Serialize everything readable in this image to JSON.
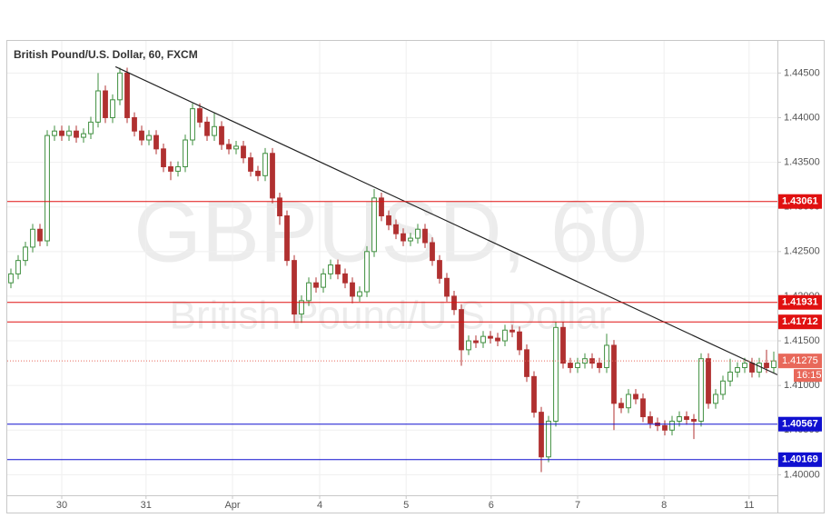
{
  "chart_data": {
    "type": "candlestick",
    "title": "British Pound/U.S. Dollar, 60, FXCM",
    "watermark": "GBPUSD, 60",
    "watermark_subtitle": "British Pound/U.S. Dollar",
    "up_color": "#3f8f3f",
    "down_color": "#b03030",
    "xlim": [
      0,
      106
    ],
    "xticks": [
      {
        "value": 7.5,
        "label": "30"
      },
      {
        "value": 19.1,
        "label": "31"
      },
      {
        "value": 31,
        "label": "Apr"
      },
      {
        "value": 43,
        "label": "4"
      },
      {
        "value": 54.9,
        "label": "5"
      },
      {
        "value": 66.6,
        "label": "6"
      },
      {
        "value": 78.5,
        "label": "7"
      },
      {
        "value": 90.4,
        "label": "8"
      },
      {
        "value": 102.1,
        "label": "11"
      }
    ],
    "ylim": [
      1.3977,
      1.4487
    ],
    "yticks": [
      {
        "value": 1.4,
        "label": "1.40000"
      },
      {
        "value": 1.405,
        "label": "1.40500"
      },
      {
        "value": 1.41,
        "label": "1.41000"
      },
      {
        "value": 1.415,
        "label": "1.41500"
      },
      {
        "value": 1.42,
        "label": "1.42000"
      },
      {
        "value": 1.425,
        "label": "1.42500"
      },
      {
        "value": 1.43,
        "label": "1.43000"
      },
      {
        "value": 1.435,
        "label": "1.43500"
      },
      {
        "value": 1.44,
        "label": "1.44000"
      },
      {
        "value": 1.445,
        "label": "1.44500"
      }
    ],
    "open": [
      1.4215,
      1.4225,
      1.424,
      1.4255,
      1.4275,
      1.4262,
      1.438,
      1.4385,
      1.438,
      1.4385,
      1.4378,
      1.4382,
      1.4395,
      1.443,
      1.44,
      1.442,
      1.445,
      1.44,
      1.4385,
      1.4375,
      1.438,
      1.4365,
      1.4345,
      1.434,
      1.4345,
      1.4375,
      1.441,
      1.4395,
      1.438,
      1.439,
      1.437,
      1.4365,
      1.4368,
      1.4355,
      1.434,
      1.4335,
      1.436,
      1.431,
      1.429,
      1.424,
      1.418,
      1.4195,
      1.4215,
      1.421,
      1.4225,
      1.4235,
      1.4225,
      1.4215,
      1.42,
      1.4205,
      1.425,
      1.431,
      1.429,
      1.428,
      1.427,
      1.4262,
      1.4265,
      1.4275,
      1.426,
      1.424,
      1.422,
      1.42,
      1.4185,
      1.414,
      1.415,
      1.4148,
      1.4155,
      1.4153,
      1.415,
      1.4162,
      1.416,
      1.414,
      1.411,
      1.407,
      1.402,
      1.406,
      1.4165,
      1.4125,
      1.412,
      1.4125,
      1.413,
      1.4125,
      1.412,
      1.4145,
      1.408,
      1.4075,
      1.409,
      1.4085,
      1.4065,
      1.4058,
      1.4055,
      1.405,
      1.406,
      1.4065,
      1.4062,
      1.406,
      1.413,
      1.408,
      1.409,
      1.4105,
      1.4115,
      1.412,
      1.4125,
      1.4115,
      1.4125,
      1.412
    ],
    "high": [
      1.4231,
      1.4246,
      1.4261,
      1.4281,
      1.4281,
      1.4386,
      1.4391,
      1.4391,
      1.4391,
      1.4391,
      1.4388,
      1.4401,
      1.445,
      1.4436,
      1.4426,
      1.4456,
      1.4456,
      1.4406,
      1.4391,
      1.4386,
      1.4386,
      1.4371,
      1.4351,
      1.4351,
      1.4381,
      1.4416,
      1.4416,
      1.4401,
      1.4405,
      1.4396,
      1.4376,
      1.4374,
      1.4374,
      1.4361,
      1.4346,
      1.4366,
      1.4366,
      1.4316,
      1.4296,
      1.4246,
      1.4201,
      1.4221,
      1.4221,
      1.4231,
      1.4241,
      1.4241,
      1.4231,
      1.4221,
      1.4211,
      1.4256,
      1.432,
      1.4316,
      1.4296,
      1.4286,
      1.4276,
      1.4271,
      1.4281,
      1.4281,
      1.4266,
      1.4246,
      1.4226,
      1.4206,
      1.4191,
      1.4156,
      1.4156,
      1.4161,
      1.4161,
      1.4159,
      1.4168,
      1.4168,
      1.4166,
      1.4146,
      1.4116,
      1.4076,
      1.4066,
      1.4171,
      1.4171,
      1.4131,
      1.4131,
      1.4136,
      1.4136,
      1.4131,
      1.4158,
      1.4151,
      1.4086,
      1.4096,
      1.4096,
      1.4091,
      1.4071,
      1.4064,
      1.4061,
      1.4066,
      1.4071,
      1.4071,
      1.4068,
      1.4136,
      1.4136,
      1.4096,
      1.4111,
      1.413,
      1.4126,
      1.4131,
      1.4131,
      1.4131,
      1.414,
      1.4138
    ],
    "low": [
      1.4209,
      1.4219,
      1.4234,
      1.4249,
      1.4256,
      1.4256,
      1.4374,
      1.4374,
      1.4374,
      1.4372,
      1.4372,
      1.4376,
      1.4389,
      1.4394,
      1.4394,
      1.4414,
      1.4394,
      1.4379,
      1.4369,
      1.4369,
      1.4359,
      1.4339,
      1.433,
      1.4334,
      1.4339,
      1.4369,
      1.4389,
      1.4374,
      1.4374,
      1.4364,
      1.4359,
      1.4359,
      1.4349,
      1.4334,
      1.4329,
      1.4329,
      1.4304,
      1.428,
      1.4234,
      1.417,
      1.417,
      1.4189,
      1.4204,
      1.4204,
      1.4219,
      1.4219,
      1.4209,
      1.4192,
      1.4194,
      1.4199,
      1.4244,
      1.4284,
      1.4274,
      1.4264,
      1.4256,
      1.4256,
      1.4259,
      1.4254,
      1.4234,
      1.4214,
      1.4194,
      1.4179,
      1.4122,
      1.4134,
      1.4142,
      1.4142,
      1.4147,
      1.4144,
      1.4144,
      1.4154,
      1.4134,
      1.4104,
      1.4064,
      1.4003,
      1.4014,
      1.4054,
      1.4119,
      1.4114,
      1.4114,
      1.4119,
      1.4119,
      1.4114,
      1.4114,
      1.405,
      1.4069,
      1.4069,
      1.4079,
      1.4059,
      1.4052,
      1.4049,
      1.4044,
      1.4044,
      1.4054,
      1.4056,
      1.404,
      1.4054,
      1.4074,
      1.4074,
      1.4084,
      1.4099,
      1.4109,
      1.4114,
      1.4109,
      1.4109,
      1.4114,
      1.4114
    ],
    "close": [
      1.4225,
      1.424,
      1.4255,
      1.4275,
      1.4262,
      1.438,
      1.4385,
      1.438,
      1.4385,
      1.4378,
      1.4382,
      1.4395,
      1.443,
      1.44,
      1.442,
      1.445,
      1.44,
      1.4385,
      1.4375,
      1.438,
      1.4365,
      1.4345,
      1.434,
      1.4345,
      1.4375,
      1.441,
      1.4395,
      1.438,
      1.439,
      1.437,
      1.4365,
      1.4368,
      1.4355,
      1.434,
      1.4335,
      1.436,
      1.431,
      1.429,
      1.424,
      1.418,
      1.4195,
      1.4215,
      1.421,
      1.4225,
      1.4235,
      1.4225,
      1.4215,
      1.42,
      1.4205,
      1.425,
      1.431,
      1.429,
      1.428,
      1.427,
      1.4262,
      1.4265,
      1.4275,
      1.426,
      1.424,
      1.422,
      1.42,
      1.4185,
      1.414,
      1.415,
      1.4148,
      1.4155,
      1.4153,
      1.415,
      1.4162,
      1.416,
      1.414,
      1.411,
      1.407,
      1.402,
      1.406,
      1.4165,
      1.4125,
      1.412,
      1.4125,
      1.413,
      1.4125,
      1.412,
      1.4145,
      1.408,
      1.4075,
      1.409,
      1.4085,
      1.4065,
      1.4058,
      1.4055,
      1.405,
      1.406,
      1.4065,
      1.4062,
      1.406,
      1.413,
      1.408,
      1.409,
      1.4105,
      1.4115,
      1.412,
      1.4125,
      1.4115,
      1.4125,
      1.412,
      1.41275
    ],
    "levels": [
      {
        "value": 1.43061,
        "color": "#e01010"
      },
      {
        "value": 1.41931,
        "color": "#e01010"
      },
      {
        "value": 1.41712,
        "color": "#e01010"
      },
      {
        "value": 1.40567,
        "color": "#1010d0"
      },
      {
        "value": 1.40169,
        "color": "#1010d0"
      }
    ],
    "last_price": {
      "value": 1.41275,
      "time_label": "16:15",
      "color": "#e8685a"
    },
    "trendline": {
      "x": [
        14.9,
        106
      ],
      "y": [
        1.4457,
        1.4112
      ],
      "color": "#222222"
    }
  }
}
